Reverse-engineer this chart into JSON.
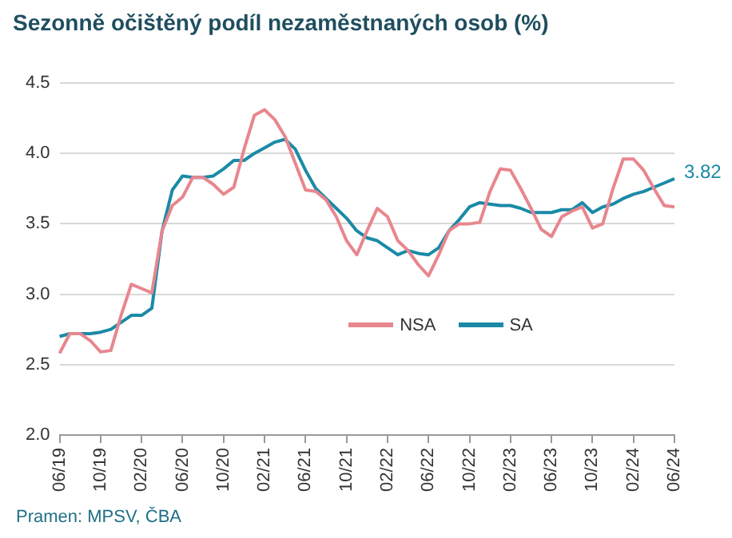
{
  "chart_data": {
    "type": "line",
    "title": "Sezonně očištěný podíl nezaměstnaných osob (%)",
    "annotations": [
      "Pramen: MPSV, ČBA"
    ],
    "categories": [
      "06/19",
      null,
      null,
      null,
      "10/19",
      null,
      null,
      null,
      "02/20",
      null,
      null,
      null,
      "06/20",
      null,
      null,
      null,
      "10/20",
      null,
      null,
      null,
      "02/21",
      null,
      null,
      null,
      "06/21",
      null,
      null,
      null,
      "10/21",
      null,
      null,
      null,
      "02/22",
      null,
      null,
      null,
      "06/22",
      null,
      null,
      null,
      "10/22",
      null,
      null,
      null,
      "02/23",
      null,
      null,
      null,
      "06/23",
      null,
      null,
      null,
      "10/23",
      null,
      null,
      null,
      "02/24",
      null,
      null,
      null,
      "06/24"
    ],
    "series": [
      {
        "name": "NSA",
        "color": "#e8868e",
        "values": [
          2.58,
          2.72,
          2.72,
          2.67,
          2.59,
          2.6,
          2.85,
          3.07,
          3.04,
          3.01,
          3.45,
          3.63,
          3.69,
          3.83,
          3.83,
          3.78,
          3.71,
          3.76,
          4.03,
          4.27,
          4.31,
          4.24,
          4.12,
          3.93,
          3.74,
          3.73,
          3.67,
          3.55,
          3.38,
          3.28,
          3.45,
          3.61,
          3.55,
          3.38,
          3.31,
          3.21,
          3.13,
          3.28,
          3.45,
          3.5,
          3.5,
          3.51,
          3.73,
          3.89,
          3.88,
          3.75,
          3.61,
          3.46,
          3.41,
          3.55,
          3.59,
          3.62,
          3.47,
          3.5,
          3.75,
          3.96,
          3.96,
          3.88,
          3.75,
          3.63,
          3.62
        ]
      },
      {
        "name": "SA",
        "color": "#1a8aa6",
        "values": [
          2.7,
          2.72,
          2.72,
          2.72,
          2.73,
          2.75,
          2.8,
          2.85,
          2.85,
          2.9,
          3.45,
          3.74,
          3.84,
          3.83,
          3.83,
          3.84,
          3.89,
          3.95,
          3.95,
          4.0,
          4.04,
          4.08,
          4.1,
          4.03,
          3.88,
          3.75,
          3.68,
          3.61,
          3.54,
          3.45,
          3.4,
          3.38,
          3.33,
          3.28,
          3.31,
          3.29,
          3.28,
          3.33,
          3.45,
          3.53,
          3.62,
          3.65,
          3.64,
          3.63,
          3.63,
          3.61,
          3.58,
          3.58,
          3.58,
          3.6,
          3.6,
          3.65,
          3.58,
          3.62,
          3.64,
          3.68,
          3.71,
          3.73,
          3.76,
          3.79,
          3.82
        ],
        "value_labels": [
          null,
          null,
          null,
          null,
          null,
          null,
          null,
          null,
          null,
          null,
          null,
          null,
          null,
          null,
          null,
          null,
          null,
          null,
          null,
          null,
          null,
          null,
          null,
          null,
          null,
          null,
          null,
          null,
          null,
          null,
          null,
          null,
          null,
          null,
          null,
          null,
          null,
          null,
          null,
          null,
          null,
          null,
          null,
          null,
          null,
          null,
          null,
          null,
          null,
          null,
          null,
          null,
          null,
          null,
          null,
          null,
          null,
          null,
          null,
          null,
          "3.82"
        ]
      }
    ],
    "ylim": [
      2.0,
      4.5
    ],
    "yticks": [
      {
        "value": 2.0,
        "label": "2.0"
      },
      {
        "value": 2.5,
        "label": "2.5"
      },
      {
        "value": 3.0,
        "label": "3.0"
      },
      {
        "value": 3.5,
        "label": "3.5"
      },
      {
        "value": 4.0,
        "label": "4.0"
      },
      {
        "value": 4.5,
        "label": "4.5"
      }
    ],
    "grid": "y",
    "legend": "bottom right",
    "marker": "none",
    "line_style": "solid"
  }
}
